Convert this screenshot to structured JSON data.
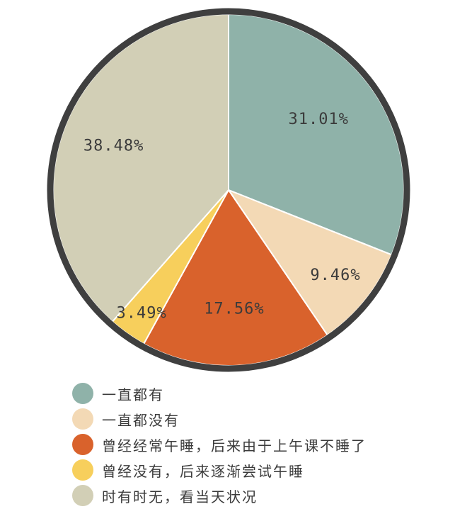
{
  "chart_data": {
    "type": "pie",
    "title": "",
    "categories": [
      "一直都有",
      "一直都没有",
      "曾经经常午睡，后来由于上午课不睡了",
      "曾经没有，后来逐渐尝试午睡",
      "时有时无，看当天状况"
    ],
    "values": [
      31.01,
      9.46,
      17.56,
      3.49,
      38.48
    ],
    "value_labels": [
      "31.01%",
      "9.46%",
      "17.56%",
      "3.49%",
      "38.48%"
    ],
    "colors": [
      "#8fb2a9",
      "#f3d9b5",
      "#d9622c",
      "#f7cf5c",
      "#d2cfb6"
    ],
    "legend_position": "bottom-left",
    "outline_color": "#3f3f3f"
  }
}
